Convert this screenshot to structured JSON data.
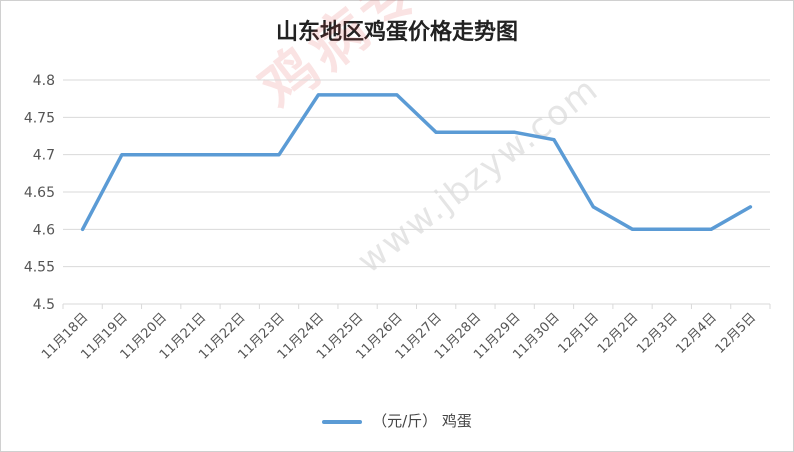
{
  "chart_data": {
    "type": "line",
    "title": "山东地区鸡蛋价格走势图",
    "categories": [
      "11月18日",
      "11月19日",
      "11月20日",
      "11月21日",
      "11月22日",
      "11月23日",
      "11月24日",
      "11月25日",
      "11月26日",
      "11月27日",
      "11月28日",
      "11月29日",
      "11月30日",
      "12月1日",
      "12月2日",
      "12月3日",
      "12月4日",
      "12月5日"
    ],
    "series": [
      {
        "name": "（元/斤） 鸡蛋",
        "values": [
          4.6,
          4.7,
          4.7,
          4.7,
          4.7,
          4.7,
          4.78,
          4.78,
          4.78,
          4.73,
          4.73,
          4.73,
          4.72,
          4.63,
          4.6,
          4.6,
          4.6,
          4.63
        ]
      }
    ],
    "ylim": [
      4.5,
      4.8
    ],
    "yticks": [
      "4.5",
      "4.55",
      "4.6",
      "4.65",
      "4.7",
      "4.75",
      "4.8"
    ],
    "grid": true,
    "legend": "bottom",
    "line_color": "#5b9bd5"
  },
  "watermark": {
    "text": "鸡病专业网",
    "url": "www.jbzyw.com"
  }
}
